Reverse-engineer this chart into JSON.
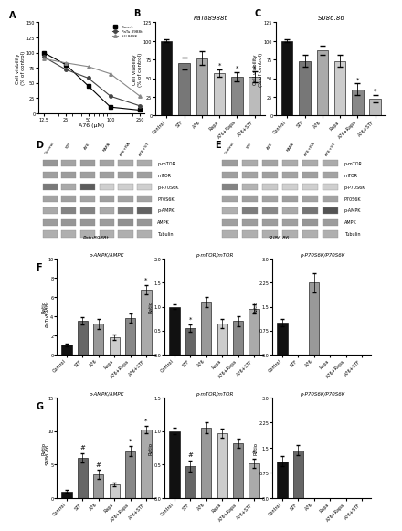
{
  "panel_A": {
    "xlabel": "A76 (μM)",
    "ylabel": "Cell viability\n(% of control)",
    "x": [
      12.5,
      25,
      50,
      100,
      250
    ],
    "panc1": [
      100,
      80,
      45,
      10,
      5
    ],
    "patu": [
      93,
      72,
      58,
      28,
      12
    ],
    "su86": [
      90,
      83,
      77,
      65,
      28
    ],
    "legend": [
      "Panc-1",
      "PaTu 8988t",
      "SU 8686"
    ],
    "ylim": [
      0,
      150
    ],
    "yticks": [
      0,
      25,
      50,
      75,
      100,
      125,
      150
    ]
  },
  "panel_B": {
    "title": "PaTu8988t",
    "ylabel": "Cell viability\n(% of control)",
    "categories": [
      "Control",
      "STF",
      "A76",
      "Rapa",
      "A76+Rapa",
      "A76+STF"
    ],
    "values": [
      100,
      70,
      77,
      57,
      52,
      52
    ],
    "errors": [
      2,
      8,
      9,
      5,
      6,
      7
    ],
    "sig": [
      false,
      false,
      false,
      true,
      true,
      true
    ],
    "ylim": [
      0,
      125
    ],
    "yticks": [
      0,
      25,
      50,
      75,
      100,
      125
    ]
  },
  "panel_C": {
    "title": "SU86.86",
    "ylabel": "Cell viability\n(% of control)",
    "categories": [
      "Control",
      "STF",
      "A76",
      "Rapa",
      "A76+Rapa",
      "A76+STF"
    ],
    "values": [
      100,
      73,
      88,
      73,
      35,
      23
    ],
    "errors": [
      2,
      8,
      6,
      8,
      8,
      5
    ],
    "sig": [
      false,
      false,
      false,
      false,
      true,
      true
    ],
    "ylim": [
      0,
      125
    ],
    "yticks": [
      0,
      25,
      50,
      75,
      100,
      125
    ]
  },
  "panel_D": {
    "cell_line": "Patu8988t",
    "lanes": [
      "Control",
      "STF",
      "A76",
      "RAPA",
      "A76+RA",
      "A76+ST"
    ],
    "proteins": [
      "p-mTOR",
      "mTOR",
      "p-P70S6K",
      "P70S6K",
      "p-AMPK",
      "AMPK",
      "Tubulin"
    ],
    "patterns": {
      "p-mTOR": [
        0.55,
        0.48,
        0.52,
        0.48,
        0.44,
        0.44
      ],
      "mTOR": [
        0.5,
        0.52,
        0.5,
        0.5,
        0.5,
        0.5
      ],
      "p-P70S6K": [
        0.7,
        0.45,
        0.85,
        0.25,
        0.25,
        0.25
      ],
      "P70S6K": [
        0.48,
        0.5,
        0.48,
        0.5,
        0.48,
        0.48
      ],
      "p-AMPK": [
        0.45,
        0.65,
        0.65,
        0.45,
        0.68,
        0.82
      ],
      "AMPK": [
        0.52,
        0.55,
        0.55,
        0.52,
        0.58,
        0.55
      ],
      "Tubulin": [
        0.42,
        0.42,
        0.42,
        0.42,
        0.42,
        0.42
      ]
    }
  },
  "panel_E": {
    "cell_line": "SU86.86",
    "lanes": [
      "Control",
      "STF",
      "A76",
      "RAPA",
      "A76+RA",
      "A76+ST"
    ],
    "proteins": [
      "p-mTOR",
      "mTOR",
      "p-P70S6K",
      "P70S6K",
      "p-AMPK",
      "AMPK",
      "Tubulin"
    ],
    "patterns": {
      "p-mTOR": [
        0.52,
        0.44,
        0.48,
        0.44,
        0.44,
        0.44
      ],
      "mTOR": [
        0.5,
        0.48,
        0.5,
        0.48,
        0.5,
        0.48
      ],
      "p-P70S6K": [
        0.65,
        0.4,
        0.28,
        0.25,
        0.25,
        0.25
      ],
      "P70S6K": [
        0.48,
        0.5,
        0.48,
        0.5,
        0.48,
        0.48
      ],
      "p-AMPK": [
        0.42,
        0.68,
        0.62,
        0.45,
        0.72,
        0.9
      ],
      "AMPK": [
        0.5,
        0.52,
        0.52,
        0.5,
        0.55,
        0.52
      ],
      "Tubulin": [
        0.42,
        0.42,
        0.42,
        0.42,
        0.42,
        0.42
      ]
    }
  },
  "panel_F": {
    "row_label": "PaTu8988t",
    "ampk": {
      "title": "p-AMPK/AMPK",
      "ylabel": "Ratio",
      "values": [
        1.0,
        3.5,
        3.2,
        1.8,
        3.8,
        6.8
      ],
      "errors": [
        0.15,
        0.4,
        0.5,
        0.3,
        0.45,
        0.45
      ],
      "sig": [
        false,
        false,
        false,
        false,
        false,
        true
      ],
      "ylim": [
        0,
        10
      ],
      "yticks": [
        0,
        2,
        4,
        6,
        8,
        10
      ]
    },
    "mtor": {
      "title": "p-mTOR/mTOR",
      "ylabel": "Ratio",
      "values": [
        1.0,
        0.55,
        1.1,
        0.65,
        0.7,
        0.95
      ],
      "errors": [
        0.05,
        0.08,
        0.1,
        0.1,
        0.1,
        0.1
      ],
      "sig": [
        false,
        true,
        false,
        false,
        false,
        false
      ],
      "ylim": [
        0,
        2.0
      ],
      "yticks": [
        0.0,
        0.5,
        1.0,
        1.5,
        2.0
      ]
    },
    "p70s6k": {
      "title": "p-P70S6K/P70S6K",
      "ylabel": "Ratio",
      "values": [
        1.0,
        0,
        2.25,
        0,
        0,
        0
      ],
      "errors": [
        0.12,
        0,
        0.3,
        0,
        0,
        0
      ],
      "show": [
        true,
        false,
        true,
        false,
        false,
        false
      ],
      "ylim": [
        0,
        3.0
      ],
      "yticks": [
        0.0,
        0.75,
        1.5,
        2.25,
        3.0
      ]
    }
  },
  "panel_G": {
    "row_label": "SU86.86",
    "ampk": {
      "title": "p-AMPK/AMPK",
      "ylabel": "Ratio",
      "values": [
        1.0,
        6.0,
        3.5,
        2.0,
        7.0,
        10.2
      ],
      "errors": [
        0.15,
        0.7,
        0.65,
        0.25,
        0.75,
        0.55
      ],
      "sig": [
        false,
        true,
        true,
        false,
        true,
        true
      ],
      "sig_marks": [
        "",
        "#",
        "#",
        "",
        "*",
        "*"
      ],
      "ylim": [
        0,
        15
      ],
      "yticks": [
        0,
        5,
        10,
        15
      ]
    },
    "mtor": {
      "title": "p-mTOR/mTOR",
      "ylabel": "Ratio",
      "values": [
        1.0,
        0.48,
        1.05,
        0.97,
        0.82,
        0.52
      ],
      "errors": [
        0.05,
        0.08,
        0.08,
        0.07,
        0.07,
        0.07
      ],
      "sig": [
        false,
        true,
        false,
        false,
        false,
        true
      ],
      "sig_marks": [
        "",
        "#",
        "",
        "",
        "",
        "*"
      ],
      "ylim": [
        0,
        1.5
      ],
      "yticks": [
        0.0,
        0.5,
        1.0,
        1.5
      ]
    },
    "p70s6k": {
      "title": "p-P70S6K/P70S6K",
      "ylabel": "Ratio",
      "values": [
        1.1,
        1.42,
        0,
        0,
        0,
        0
      ],
      "errors": [
        0.15,
        0.15,
        0,
        0,
        0,
        0
      ],
      "show": [
        true,
        true,
        false,
        false,
        false,
        false
      ],
      "ylim": [
        0,
        3.0
      ],
      "yticks": [
        0.0,
        0.75,
        1.5,
        2.25,
        3.0
      ]
    }
  },
  "bar_colors": [
    "#111111",
    "#666666",
    "#999999",
    "#cccccc",
    "#888888",
    "#aaaaaa"
  ],
  "bar_colors_bc": [
    "#111111",
    "#777777",
    "#aaaaaa",
    "#cccccc",
    "#888888",
    "#bbbbbb"
  ]
}
